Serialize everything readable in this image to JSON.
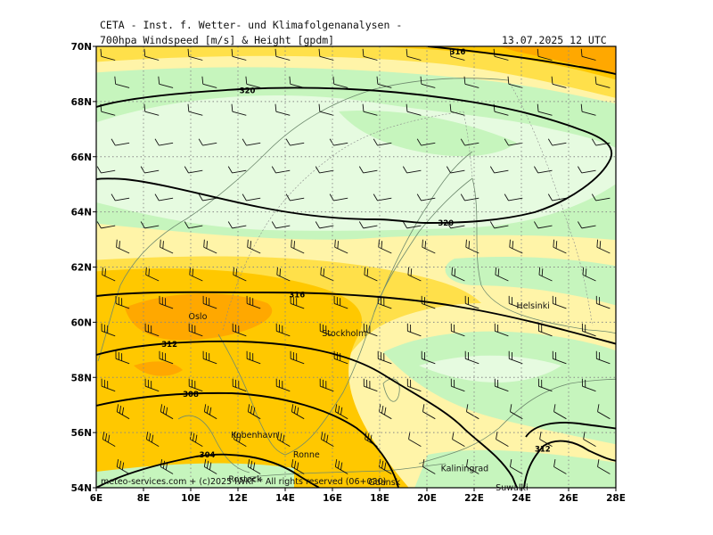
{
  "header": {
    "line1": "CETA - Inst. f. Wetter- und Klimafolgenanalysen -",
    "line2": "700hpa Windspeed [m/s] & Height [gpdm]",
    "datetime": "13.07.2025 12 UTC"
  },
  "map": {
    "lon_range": [
      6,
      28
    ],
    "lat_range": [
      54,
      70
    ],
    "grid_dashed": true,
    "x_ticks": [
      "6E",
      "8E",
      "10E",
      "12E",
      "14E",
      "16E",
      "18E",
      "20E",
      "22E",
      "24E",
      "26E",
      "28E"
    ],
    "y_ticks": [
      "54N",
      "56N",
      "58N",
      "60N",
      "62N",
      "64N",
      "66N",
      "68N",
      "70N"
    ],
    "colors": {
      "very_light_green": "#e6fbe0",
      "light_green": "#c6f5bd",
      "pale_yellow": "#fff4a8",
      "yellow": "#ffe04a",
      "gold": "#ffc800",
      "orange": "#ffa800",
      "contour": "#000000",
      "coast": "#6e8a6e"
    },
    "contour_labels": [
      {
        "text": "316",
        "lon": 21.3,
        "lat": 69.8
      },
      {
        "text": "320",
        "lon": 12.4,
        "lat": 68.4
      },
      {
        "text": "320",
        "lon": 20.8,
        "lat": 63.6
      },
      {
        "text": "316",
        "lon": 14.5,
        "lat": 61.0
      },
      {
        "text": "312",
        "lon": 9.1,
        "lat": 59.2
      },
      {
        "text": "308",
        "lon": 10.0,
        "lat": 57.4
      },
      {
        "text": "304",
        "lon": 10.7,
        "lat": 55.2
      },
      {
        "text": "312",
        "lon": 24.9,
        "lat": 55.4
      }
    ],
    "cities": [
      {
        "name": "Oslo",
        "lon": 10.3,
        "lat": 60.2
      },
      {
        "name": "Stockholm",
        "lon": 16.5,
        "lat": 59.6
      },
      {
        "name": "Helsinki",
        "lon": 24.5,
        "lat": 60.6
      },
      {
        "name": "Kobenhavn",
        "lon": 12.7,
        "lat": 55.9
      },
      {
        "name": "Ronne",
        "lon": 14.9,
        "lat": 55.2
      },
      {
        "name": "Kaliningrad",
        "lon": 21.6,
        "lat": 54.7
      },
      {
        "name": "Rostock",
        "lon": 12.3,
        "lat": 54.3
      },
      {
        "name": "Gdansk",
        "lon": 18.2,
        "lat": 54.2
      },
      {
        "name": "Suwalki",
        "lon": 23.6,
        "lat": 54.0
      }
    ],
    "credit": "meteo-services.com + (c)2025 IWKF * All rights reserved (06+030)"
  }
}
